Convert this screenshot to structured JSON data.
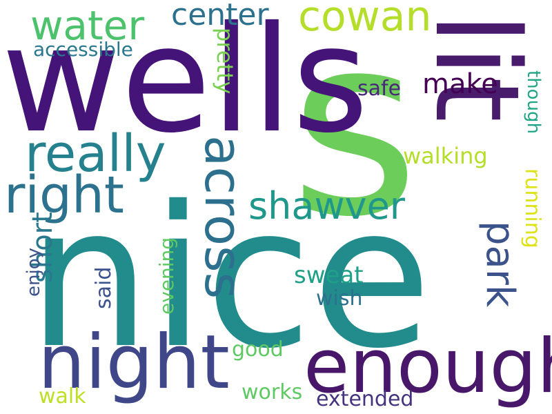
{
  "word_cloud": {
    "background": "#ffffff",
    "words": [
      {
        "key": "s",
        "text": "s",
        "color": "#6ccd5a"
      },
      {
        "key": "nice",
        "text": "nice",
        "color": "#228c8d"
      },
      {
        "key": "wells",
        "text": "wells",
        "color": "#451479"
      },
      {
        "key": "lit",
        "text": "lit",
        "color": "#481b6d"
      },
      {
        "key": "night",
        "text": "night",
        "color": "#3f4788"
      },
      {
        "key": "enough",
        "text": "enough",
        "color": "#481769"
      },
      {
        "key": "really",
        "text": "really",
        "color": "#26818e"
      },
      {
        "key": "right",
        "text": "right",
        "color": "#2c728e"
      },
      {
        "key": "across",
        "text": "across",
        "color": "#2d708e"
      },
      {
        "key": "cowan",
        "text": "cowan",
        "color": "#b5de2b"
      },
      {
        "key": "water",
        "text": "water",
        "color": "#4cc26c"
      },
      {
        "key": "center",
        "text": "center",
        "color": "#2c728e"
      },
      {
        "key": "shawver",
        "text": "shawver",
        "color": "#1f988b"
      },
      {
        "key": "park",
        "text": "park",
        "color": "#3b528b"
      },
      {
        "key": "make",
        "text": "make",
        "color": "#440154"
      },
      {
        "key": "safe",
        "text": "safe",
        "color": "#482878"
      },
      {
        "key": "walking",
        "text": "walking",
        "color": "#b5de2b"
      },
      {
        "key": "though",
        "text": "though",
        "color": "#21a685"
      },
      {
        "key": "running",
        "text": "running",
        "color": "#dde318"
      },
      {
        "key": "accessible",
        "text": "accessible",
        "color": "#2a788e"
      },
      {
        "key": "pretty",
        "text": "pretty",
        "color": "#7ad151"
      },
      {
        "key": "short",
        "text": "short",
        "color": "#2a788e"
      },
      {
        "key": "enjoy",
        "text": "enjoy",
        "color": "#3b528b"
      },
      {
        "key": "said",
        "text": "said",
        "color": "#3b528b"
      },
      {
        "key": "evening",
        "text": "evening",
        "color": "#5ec962"
      },
      {
        "key": "sweat",
        "text": "sweat",
        "color": "#1fa088"
      },
      {
        "key": "wish",
        "text": "wish",
        "color": "#2c728e"
      },
      {
        "key": "good",
        "text": "good",
        "color": "#5ec962"
      },
      {
        "key": "works",
        "text": "works",
        "color": "#5ec962"
      },
      {
        "key": "walk",
        "text": "walk",
        "color": "#bddf26"
      },
      {
        "key": "extended",
        "text": "extended",
        "color": "#46337e"
      }
    ]
  }
}
